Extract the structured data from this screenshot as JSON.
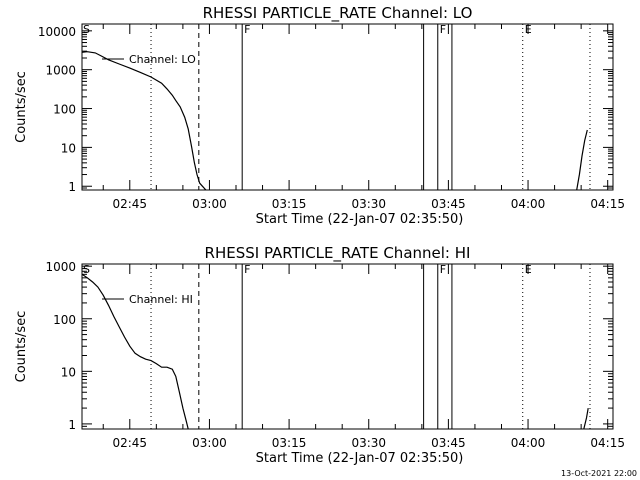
{
  "timestamp": "13-Oct-2021 22:00",
  "chart_data": [
    {
      "type": "line",
      "title": "RHESSI PARTICLE_RATE Channel: LO",
      "xlabel": "Start Time (22-Jan-07 02:35:50)",
      "ylabel": "Counts/sec",
      "yscale": "log",
      "xlim": [
        "02:36:00",
        "04:16:00"
      ],
      "ylim": [
        0.8,
        15000
      ],
      "xticks": [
        "02:45",
        "03:00",
        "03:15",
        "03:30",
        "03:45",
        "04:00",
        "04:15"
      ],
      "yticks": [
        "1",
        "10",
        "100",
        "1000",
        "10000"
      ],
      "legend": {
        "label": "Channel: LO",
        "position": "top-left"
      },
      "series": [
        {
          "name": "Channel: LO",
          "x": [
            "02:36:00",
            "02:37:00",
            "02:38:30",
            "02:39:30",
            "02:41:00",
            "02:43:00",
            "02:45:00",
            "02:47:00",
            "02:49:00",
            "02:51:00",
            "02:52:00",
            "02:53:00",
            "02:53:40",
            "02:54:30",
            "02:55:20",
            "02:56:00",
            "02:56:40",
            "02:57:10",
            "02:57:40",
            "02:58:10",
            "02:58:40",
            "02:59:20"
          ],
          "y": [
            2800,
            2900,
            2700,
            2300,
            1800,
            1400,
            1100,
            850,
            650,
            450,
            320,
            220,
            160,
            110,
            60,
            30,
            10,
            4,
            2,
            1.2,
            1.0,
            0.8
          ]
        },
        {
          "name": "Channel: LO",
          "x": [
            "04:09:10",
            "04:09:40",
            "04:10:10",
            "04:10:40",
            "04:11:10"
          ],
          "y": [
            0.8,
            2,
            6,
            15,
            28
          ]
        }
      ],
      "vlines": [
        {
          "x": "02:49:00",
          "style": "dotted"
        },
        {
          "x": "02:58:00",
          "style": "dashed"
        },
        {
          "x": "03:06:10",
          "style": "solid",
          "label": "F"
        },
        {
          "x": "03:40:20",
          "style": "solid"
        },
        {
          "x": "03:43:00",
          "style": "solid",
          "label": "F"
        },
        {
          "x": "03:45:40",
          "style": "solid"
        },
        {
          "x": "03:59:00",
          "style": "dotted",
          "label": "E"
        },
        {
          "x": "04:11:40",
          "style": "dotted"
        }
      ],
      "top_left_marker": "S"
    },
    {
      "type": "line",
      "title": "RHESSI PARTICLE_RATE Channel: HI",
      "xlabel": "Start Time (22-Jan-07 02:35:50)",
      "ylabel": "Counts/sec",
      "yscale": "log",
      "xlim": [
        "02:36:00",
        "04:16:00"
      ],
      "ylim": [
        0.8,
        1100
      ],
      "xticks": [
        "02:45",
        "03:00",
        "03:15",
        "03:30",
        "03:45",
        "04:00",
        "04:15"
      ],
      "yticks": [
        "1",
        "10",
        "100",
        "1000"
      ],
      "legend": {
        "label": "Channel: HI",
        "position": "top-left"
      },
      "series": [
        {
          "name": "Channel: HI",
          "x": [
            "02:36:00",
            "02:37:00",
            "02:38:00",
            "02:39:00",
            "02:40:00",
            "02:41:00",
            "02:42:00",
            "02:43:00",
            "02:44:00",
            "02:45:00",
            "02:46:00",
            "02:47:00",
            "02:48:00",
            "02:49:00",
            "02:50:00",
            "02:51:00",
            "02:52:00",
            "02:53:00",
            "02:53:40",
            "02:54:20",
            "02:55:00",
            "02:55:40",
            "02:56:00"
          ],
          "y": [
            700,
            600,
            500,
            400,
            280,
            180,
            110,
            70,
            45,
            30,
            22,
            19,
            17,
            16,
            14,
            12,
            12,
            11,
            8,
            4,
            2,
            1.1,
            0.8
          ]
        },
        {
          "name": "Channel: HI",
          "x": [
            "04:10:30",
            "04:11:00",
            "04:11:20"
          ],
          "y": [
            0.8,
            1.3,
            2
          ]
        }
      ],
      "vlines": [
        {
          "x": "02:49:00",
          "style": "dotted"
        },
        {
          "x": "02:58:00",
          "style": "dashed"
        },
        {
          "x": "03:06:10",
          "style": "solid",
          "label": "F"
        },
        {
          "x": "03:40:20",
          "style": "solid"
        },
        {
          "x": "03:43:00",
          "style": "solid",
          "label": "F"
        },
        {
          "x": "03:45:40",
          "style": "solid"
        },
        {
          "x": "03:59:00",
          "style": "dotted",
          "label": "E"
        },
        {
          "x": "04:11:40",
          "style": "dotted"
        }
      ],
      "top_left_marker": "S"
    }
  ]
}
